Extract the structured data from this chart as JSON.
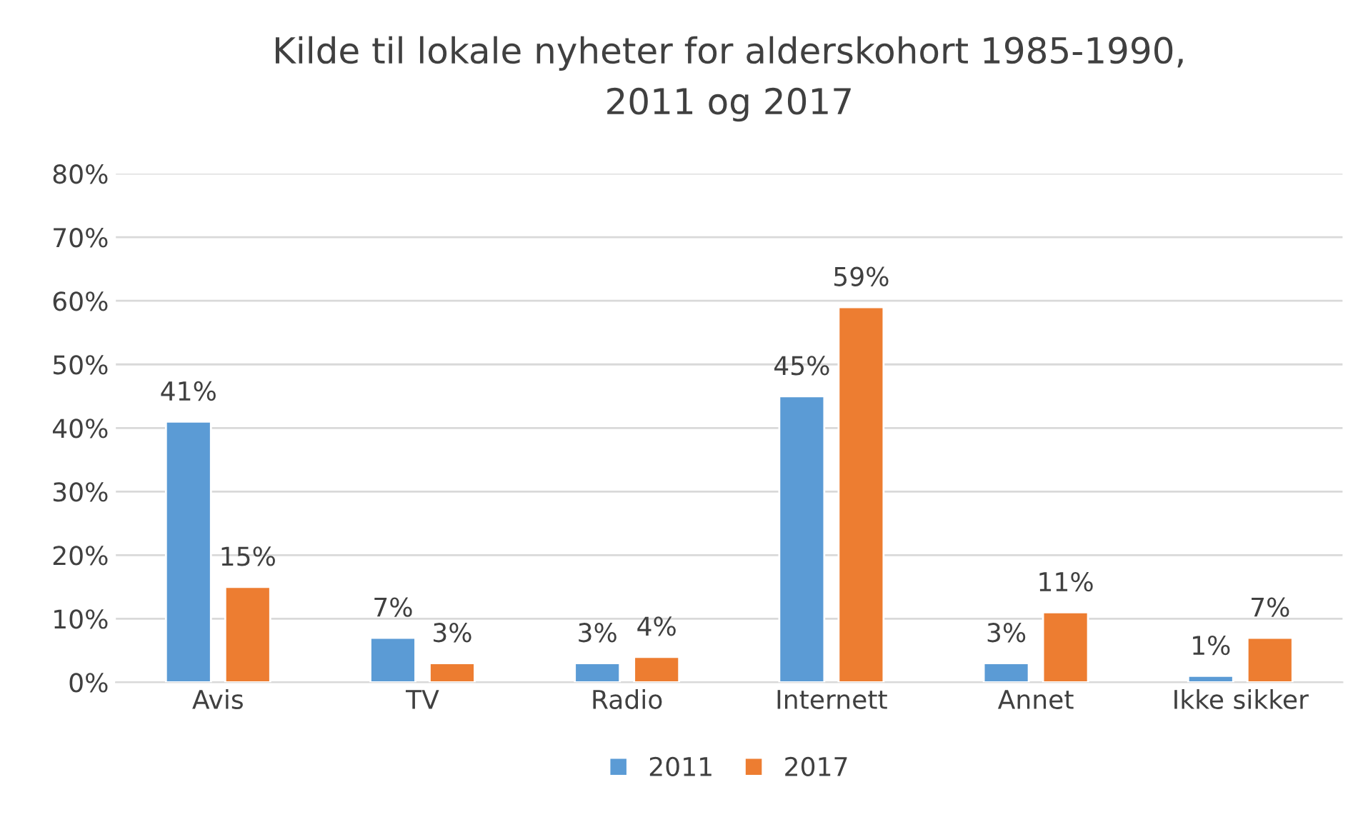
{
  "chart_data": {
    "type": "bar",
    "title": "Kilde til lokale nyheter for alderskohort 1985-1990,\n2011 og 2017",
    "categories": [
      "Avis",
      "TV",
      "Radio",
      "Internett",
      "Annet",
      "Ikke sikker"
    ],
    "series": [
      {
        "name": "2011",
        "color": "#5b9bd5",
        "values": [
          41,
          7,
          3,
          45,
          3,
          1
        ],
        "value_labels": [
          "41%",
          "7%",
          "3%",
          "45%",
          "3%",
          "1%"
        ]
      },
      {
        "name": "2017",
        "color": "#ed7d31",
        "values": [
          15,
          3,
          4,
          59,
          11,
          7
        ],
        "value_labels": [
          "15%",
          "3%",
          "4%",
          "59%",
          "11%",
          "7%"
        ]
      }
    ],
    "ylim": [
      0,
      80
    ],
    "yticks": [
      {
        "value": 0,
        "label": "0%"
      },
      {
        "value": 10,
        "label": "10%"
      },
      {
        "value": 20,
        "label": "20%"
      },
      {
        "value": 30,
        "label": "30%"
      },
      {
        "value": 40,
        "label": "40%"
      },
      {
        "value": 50,
        "label": "50%"
      },
      {
        "value": 60,
        "label": "60%"
      },
      {
        "value": 70,
        "label": "70%"
      },
      {
        "value": 80,
        "label": "80%"
      }
    ],
    "grid": "y",
    "legend": "bottom"
  }
}
